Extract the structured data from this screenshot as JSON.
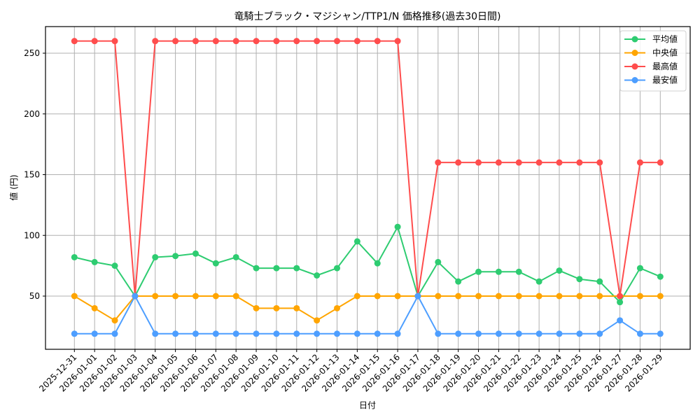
{
  "chart_data": {
    "type": "line",
    "title": "竜騎士ブラック・マジシャン/TTP1/N 価格推移(過去30日間)",
    "xlabel": "日付",
    "ylabel": "値 (円)",
    "ylim": [
      4.5,
      271.5
    ],
    "yticks": [
      50,
      100,
      150,
      200,
      250
    ],
    "grid": true,
    "legend_position": "upper right",
    "categories": [
      "2025-12-31",
      "2026-01-01",
      "2026-01-02",
      "2026-01-03",
      "2026-01-04",
      "2026-01-05",
      "2026-01-06",
      "2026-01-07",
      "2026-01-08",
      "2026-01-09",
      "2026-01-10",
      "2026-01-11",
      "2026-01-12",
      "2026-01-13",
      "2026-01-14",
      "2026-01-15",
      "2026-01-16",
      "2026-01-17",
      "2026-01-18",
      "2026-01-19",
      "2026-01-20",
      "2026-01-21",
      "2026-01-22",
      "2026-01-23",
      "2026-01-24",
      "2026-01-25",
      "2026-01-26",
      "2026-01-27",
      "2026-01-28",
      "2026-01-29"
    ],
    "series": [
      {
        "name": "平均値",
        "color": "#2ecc71",
        "values": [
          82,
          78,
          75,
          50,
          82,
          83,
          85,
          77,
          82,
          73,
          73,
          73,
          67,
          73,
          95,
          77,
          107,
          50,
          78,
          62,
          70,
          70,
          70,
          62,
          71,
          64,
          62,
          45,
          73,
          66
        ]
      },
      {
        "name": "中央値",
        "color": "#ffa500",
        "values": [
          50,
          40,
          30,
          50,
          50,
          50,
          50,
          50,
          50,
          40,
          40,
          40,
          30,
          40,
          50,
          50,
          50,
          50,
          50,
          50,
          50,
          50,
          50,
          50,
          50,
          50,
          50,
          50,
          50,
          50
        ]
      },
      {
        "name": "最高値",
        "color": "#ff4d4d",
        "values": [
          260,
          260,
          260,
          50,
          260,
          260,
          260,
          260,
          260,
          260,
          260,
          260,
          260,
          260,
          260,
          260,
          260,
          50,
          160,
          160,
          160,
          160,
          160,
          160,
          160,
          160,
          160,
          50,
          160,
          160
        ]
      },
      {
        "name": "最安値",
        "color": "#4d9eff",
        "values": [
          19,
          19,
          19,
          50,
          19,
          19,
          19,
          19,
          19,
          19,
          19,
          19,
          19,
          19,
          19,
          19,
          19,
          50,
          19,
          19,
          19,
          19,
          19,
          19,
          19,
          19,
          19,
          30,
          19,
          19
        ]
      }
    ]
  }
}
